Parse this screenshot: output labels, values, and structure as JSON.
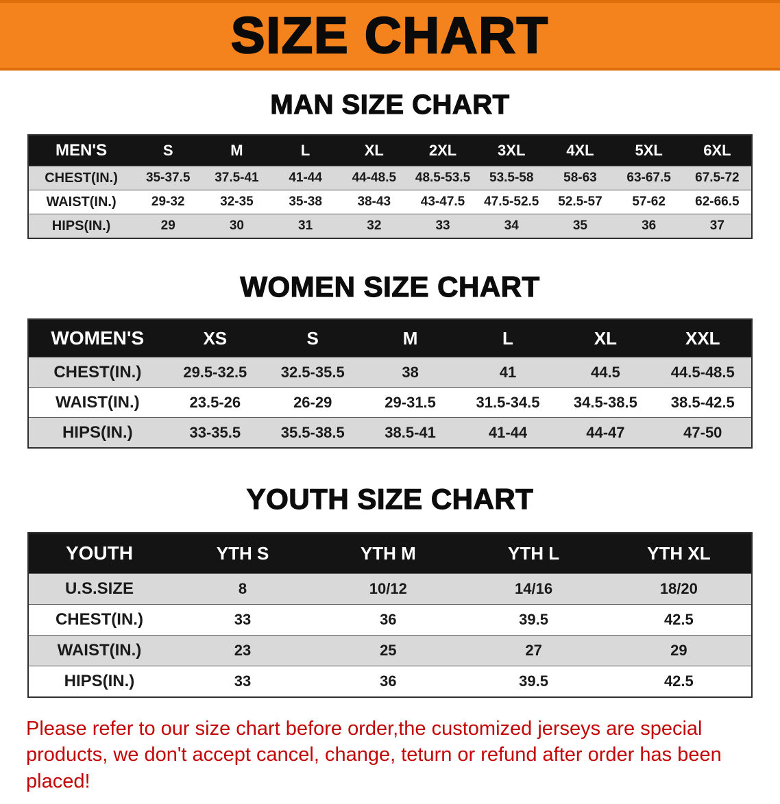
{
  "banner": {
    "title": "SIZE CHART"
  },
  "colors": {
    "banner_bg": "#F5831D",
    "banner_edge": "#DC6F0A",
    "header_bg": "#141414",
    "stripe": "#D9D9D9",
    "disclaimer_red": "#C30505"
  },
  "sections": [
    {
      "heading": "MAN SIZE CHART",
      "table": {
        "header": [
          "MEN'S",
          "S",
          "M",
          "L",
          "XL",
          "2XL",
          "3XL",
          "4XL",
          "5XL",
          "6XL"
        ],
        "rows": [
          [
            "CHEST(IN.)",
            "35-37.5",
            "37.5-41",
            "41-44",
            "44-48.5",
            "48.5-53.5",
            "53.5-58",
            "58-63",
            "63-67.5",
            "67.5-72"
          ],
          [
            "WAIST(IN.)",
            "29-32",
            "32-35",
            "35-38",
            "38-43",
            "43-47.5",
            "47.5-52.5",
            "52.5-57",
            "57-62",
            "62-66.5"
          ],
          [
            "HIPS(IN.)",
            "29",
            "30",
            "31",
            "32",
            "33",
            "34",
            "35",
            "36",
            "37"
          ]
        ]
      }
    },
    {
      "heading": "WOMEN SIZE CHART",
      "table": {
        "header": [
          "WOMEN'S",
          "XS",
          "S",
          "M",
          "L",
          "XL",
          "XXL"
        ],
        "rows": [
          [
            "CHEST(IN.)",
            "29.5-32.5",
            "32.5-35.5",
            "38",
            "41",
            "44.5",
            "44.5-48.5"
          ],
          [
            "WAIST(IN.)",
            "23.5-26",
            "26-29",
            "29-31.5",
            "31.5-34.5",
            "34.5-38.5",
            "38.5-42.5"
          ],
          [
            "HIPS(IN.)",
            "33-35.5",
            "35.5-38.5",
            "38.5-41",
            "41-44",
            "44-47",
            "47-50"
          ]
        ]
      }
    },
    {
      "heading": "YOUTH SIZE CHART",
      "table": {
        "header": [
          "YOUTH",
          "YTH S",
          "YTH M",
          "YTH L",
          "YTH XL"
        ],
        "rows": [
          [
            "U.S.SIZE",
            "8",
            "10/12",
            "14/16",
            "18/20"
          ],
          [
            "CHEST(IN.)",
            "33",
            "36",
            "39.5",
            "42.5"
          ],
          [
            "WAIST(IN.)",
            "23",
            "25",
            "27",
            "29"
          ],
          [
            "HIPS(IN.)",
            "33",
            "36",
            "39.5",
            "42.5"
          ]
        ]
      }
    }
  ],
  "disclaimer": "Please refer to our size chart before order,the customized jerseys are special products, we don't accept cancel, change, teturn or refund after order has been placed!"
}
